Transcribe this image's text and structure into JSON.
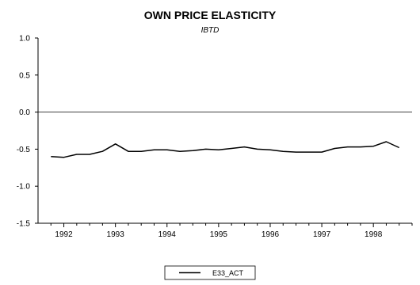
{
  "chart_data": {
    "type": "line",
    "title": "OWN PRICE ELASTICITY",
    "subtitle": "IBTD",
    "xlabel": "",
    "ylabel": "",
    "ylim": [
      -1.5,
      1.0
    ],
    "yticks": [
      "1.0",
      "0.5",
      "0.0",
      "-0.5",
      "-1.0",
      "-1.5"
    ],
    "ytick_values": [
      1.0,
      0.5,
      0.0,
      -0.5,
      -1.0,
      -1.5
    ],
    "xlim": [
      1991.5,
      1998.75
    ],
    "xticks": [
      "1992",
      "1993",
      "1994",
      "1995",
      "1996",
      "1997",
      "1998"
    ],
    "xtick_values": [
      1992,
      1993,
      1994,
      1995,
      1996,
      1997,
      1998
    ],
    "grid": false,
    "zero_line": true,
    "legend_position": "bottom-center",
    "series": [
      {
        "name": "E33_ACT",
        "color": "#000000",
        "x": [
          1991.75,
          1992.0,
          1992.25,
          1992.5,
          1992.75,
          1993.0,
          1993.25,
          1993.5,
          1993.75,
          1994.0,
          1994.25,
          1994.5,
          1994.75,
          1995.0,
          1995.25,
          1995.5,
          1995.75,
          1996.0,
          1996.25,
          1996.5,
          1996.75,
          1997.0,
          1997.25,
          1997.5,
          1997.75,
          1998.0,
          1998.25,
          1998.5
        ],
        "values": [
          -0.6,
          -0.61,
          -0.57,
          -0.57,
          -0.53,
          -0.43,
          -0.53,
          -0.53,
          -0.51,
          -0.51,
          -0.53,
          -0.52,
          -0.5,
          -0.51,
          -0.49,
          -0.47,
          -0.5,
          -0.51,
          -0.53,
          -0.54,
          -0.54,
          -0.54,
          -0.49,
          -0.47,
          -0.47,
          -0.46,
          -0.4,
          -0.48
        ]
      }
    ]
  }
}
